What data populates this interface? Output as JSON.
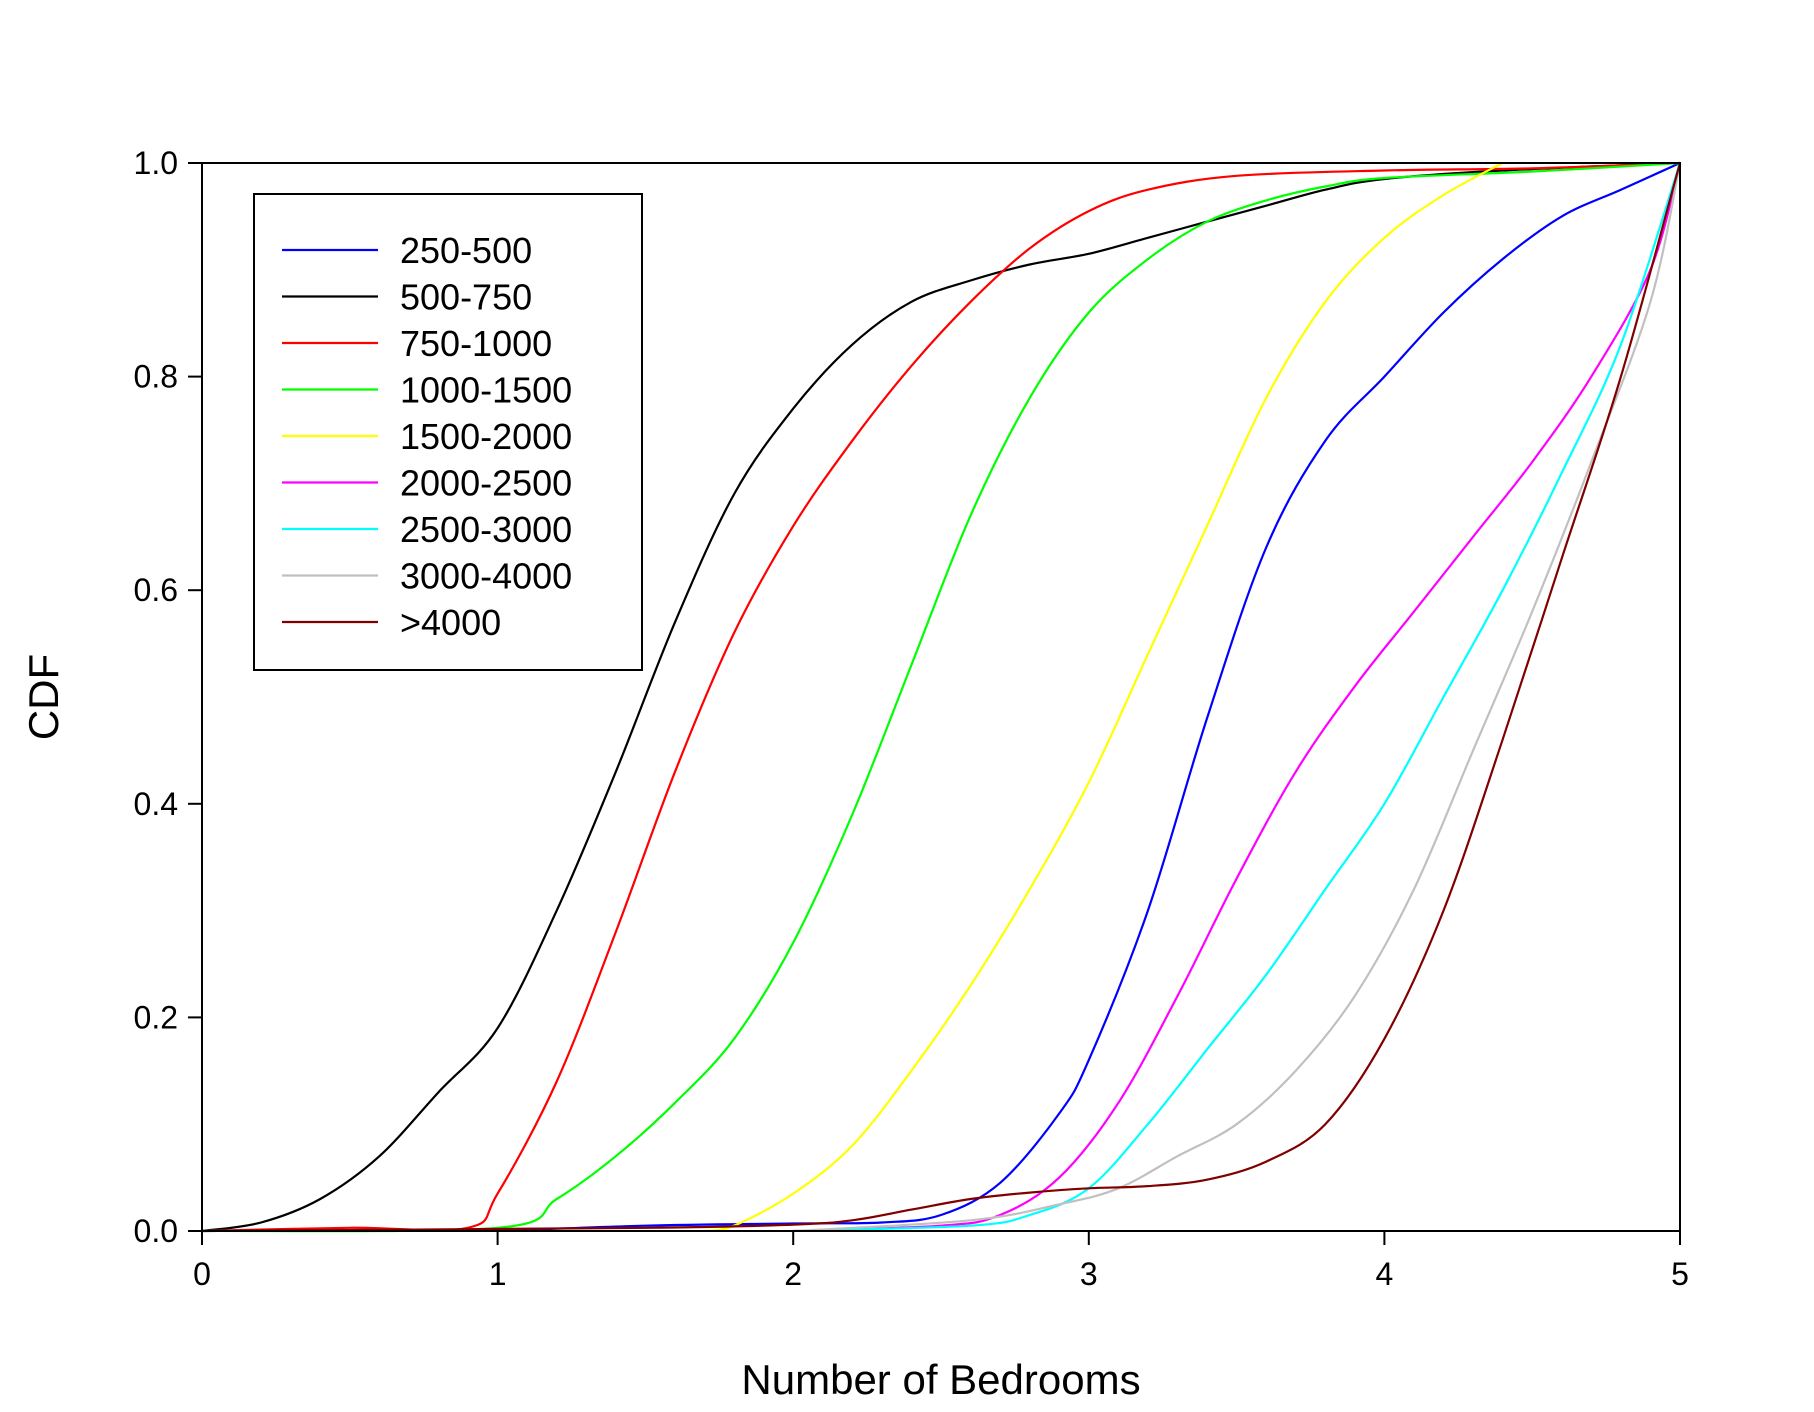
{
  "chart_data": {
    "type": "line",
    "xlabel": "Number of Bedrooms",
    "ylabel": "CDF",
    "xlim": [
      0,
      5
    ],
    "ylim": [
      0,
      1.0
    ],
    "x_ticks": [
      "0",
      "1",
      "2",
      "3",
      "4",
      "5"
    ],
    "y_ticks": [
      "0.0",
      "0.2",
      "0.4",
      "0.6",
      "0.8",
      "1.0"
    ],
    "grid": false,
    "legend_position": "top-left",
    "series": [
      {
        "name": "250-500",
        "color": "#0000ff",
        "points": [
          [
            1,
            0
          ],
          [
            1.5,
            0.005
          ],
          [
            2,
            0.007
          ],
          [
            2.3,
            0.008
          ],
          [
            2.5,
            0.015
          ],
          [
            2.7,
            0.045
          ],
          [
            2.9,
            0.11
          ],
          [
            3.0,
            0.16
          ],
          [
            3.2,
            0.3
          ],
          [
            3.4,
            0.48
          ],
          [
            3.6,
            0.64
          ],
          [
            3.8,
            0.74
          ],
          [
            4.0,
            0.8
          ],
          [
            4.2,
            0.86
          ],
          [
            4.4,
            0.91
          ],
          [
            4.6,
            0.95
          ],
          [
            4.8,
            0.975
          ],
          [
            5,
            1.0
          ]
        ]
      },
      {
        "name": "500-750",
        "color": "#000000",
        "points": [
          [
            0,
            0
          ],
          [
            0.2,
            0.008
          ],
          [
            0.4,
            0.03
          ],
          [
            0.6,
            0.07
          ],
          [
            0.8,
            0.13
          ],
          [
            1.0,
            0.19
          ],
          [
            1.2,
            0.3
          ],
          [
            1.4,
            0.43
          ],
          [
            1.6,
            0.57
          ],
          [
            1.8,
            0.69
          ],
          [
            2.0,
            0.77
          ],
          [
            2.2,
            0.83
          ],
          [
            2.4,
            0.87
          ],
          [
            2.6,
            0.89
          ],
          [
            2.8,
            0.905
          ],
          [
            3.0,
            0.915
          ],
          [
            3.2,
            0.93
          ],
          [
            3.4,
            0.945
          ],
          [
            3.6,
            0.96
          ],
          [
            3.8,
            0.975
          ],
          [
            4.0,
            0.985
          ],
          [
            4.4,
            0.993
          ],
          [
            5,
            1.0
          ]
        ]
      },
      {
        "name": "750-1000",
        "color": "#ff0000",
        "points": [
          [
            0,
            0
          ],
          [
            0.5,
            0.003
          ],
          [
            0.9,
            0.003
          ],
          [
            1.0,
            0.035
          ],
          [
            1.2,
            0.14
          ],
          [
            1.4,
            0.28
          ],
          [
            1.6,
            0.43
          ],
          [
            1.8,
            0.56
          ],
          [
            2.0,
            0.66
          ],
          [
            2.2,
            0.74
          ],
          [
            2.4,
            0.81
          ],
          [
            2.6,
            0.87
          ],
          [
            2.8,
            0.92
          ],
          [
            3.0,
            0.955
          ],
          [
            3.2,
            0.975
          ],
          [
            3.5,
            0.988
          ],
          [
            4.0,
            0.993
          ],
          [
            4.5,
            0.995
          ],
          [
            5,
            1.0
          ]
        ]
      },
      {
        "name": "1000-1500",
        "color": "#00ff00",
        "points": [
          [
            0,
            0
          ],
          [
            1.0,
            0.003
          ],
          [
            1.2,
            0.03
          ],
          [
            1.4,
            0.07
          ],
          [
            1.6,
            0.12
          ],
          [
            1.8,
            0.18
          ],
          [
            2.0,
            0.27
          ],
          [
            2.2,
            0.39
          ],
          [
            2.4,
            0.53
          ],
          [
            2.6,
            0.67
          ],
          [
            2.8,
            0.78
          ],
          [
            3.0,
            0.86
          ],
          [
            3.2,
            0.91
          ],
          [
            3.4,
            0.945
          ],
          [
            3.6,
            0.965
          ],
          [
            3.8,
            0.978
          ],
          [
            4.0,
            0.986
          ],
          [
            4.5,
            0.992
          ],
          [
            5,
            1.0
          ]
        ]
      },
      {
        "name": "1500-2000",
        "color": "#ffff00",
        "points": [
          [
            1.7,
            0
          ],
          [
            1.8,
            0.005
          ],
          [
            2.0,
            0.035
          ],
          [
            2.2,
            0.08
          ],
          [
            2.4,
            0.15
          ],
          [
            2.6,
            0.23
          ],
          [
            2.8,
            0.32
          ],
          [
            3.0,
            0.42
          ],
          [
            3.2,
            0.54
          ],
          [
            3.4,
            0.66
          ],
          [
            3.6,
            0.78
          ],
          [
            3.8,
            0.87
          ],
          [
            4.0,
            0.93
          ],
          [
            4.2,
            0.97
          ],
          [
            4.4,
            1.0
          ]
        ]
      },
      {
        "name": "2000-2500",
        "color": "#ff00ff",
        "points": [
          [
            2.0,
            0
          ],
          [
            2.5,
            0.005
          ],
          [
            2.7,
            0.015
          ],
          [
            2.9,
            0.05
          ],
          [
            3.1,
            0.12
          ],
          [
            3.3,
            0.22
          ],
          [
            3.5,
            0.33
          ],
          [
            3.7,
            0.43
          ],
          [
            3.9,
            0.51
          ],
          [
            4.1,
            0.58
          ],
          [
            4.3,
            0.65
          ],
          [
            4.5,
            0.72
          ],
          [
            4.7,
            0.8
          ],
          [
            4.9,
            0.9
          ],
          [
            5,
            1.0
          ]
        ]
      },
      {
        "name": "2500-3000",
        "color": "#00ffff",
        "points": [
          [
            2.0,
            0
          ],
          [
            2.6,
            0.005
          ],
          [
            2.8,
            0.015
          ],
          [
            3.0,
            0.04
          ],
          [
            3.2,
            0.1
          ],
          [
            3.4,
            0.17
          ],
          [
            3.6,
            0.24
          ],
          [
            3.8,
            0.32
          ],
          [
            4.0,
            0.4
          ],
          [
            4.2,
            0.5
          ],
          [
            4.4,
            0.6
          ],
          [
            4.6,
            0.71
          ],
          [
            4.8,
            0.83
          ],
          [
            5,
            1.0
          ]
        ]
      },
      {
        "name": "3000-4000",
        "color": "#c0c0c0",
        "points": [
          [
            2.0,
            0
          ],
          [
            2.6,
            0.01
          ],
          [
            2.9,
            0.025
          ],
          [
            3.1,
            0.04
          ],
          [
            3.3,
            0.07
          ],
          [
            3.5,
            0.1
          ],
          [
            3.7,
            0.15
          ],
          [
            3.9,
            0.22
          ],
          [
            4.1,
            0.32
          ],
          [
            4.3,
            0.45
          ],
          [
            4.5,
            0.58
          ],
          [
            4.7,
            0.72
          ],
          [
            4.9,
            0.87
          ],
          [
            5,
            1.0
          ]
        ]
      },
      {
        "name": ">4000",
        "color": "#800000",
        "points": [
          [
            0,
            0
          ],
          [
            1.5,
            0.003
          ],
          [
            2.0,
            0.006
          ],
          [
            2.2,
            0.01
          ],
          [
            2.4,
            0.02
          ],
          [
            2.6,
            0.03
          ],
          [
            2.8,
            0.036
          ],
          [
            3.0,
            0.04
          ],
          [
            3.2,
            0.042
          ],
          [
            3.4,
            0.048
          ],
          [
            3.6,
            0.065
          ],
          [
            3.8,
            0.1
          ],
          [
            4.0,
            0.18
          ],
          [
            4.2,
            0.3
          ],
          [
            4.4,
            0.46
          ],
          [
            4.6,
            0.63
          ],
          [
            4.8,
            0.8
          ],
          [
            5,
            1.0
          ]
        ]
      }
    ]
  }
}
